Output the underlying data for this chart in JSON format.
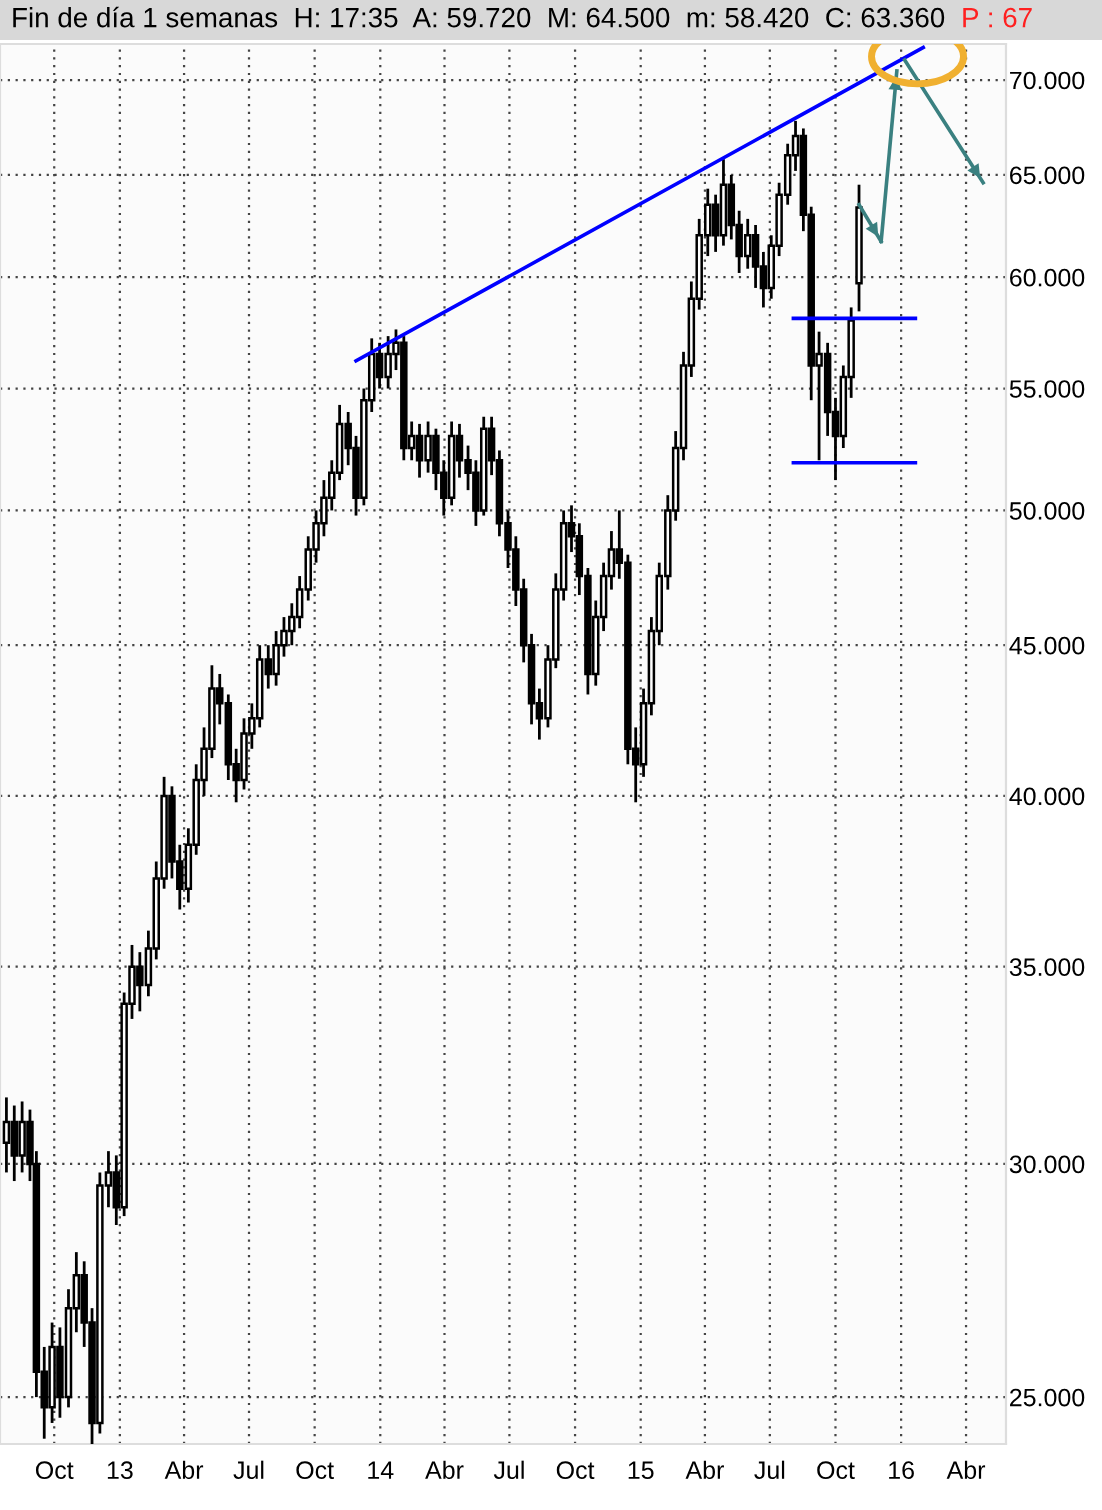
{
  "chart_data": {
    "type": "candlestick",
    "title": "Fin de día 1 semanas  H: 17:35  A: 59.720  M: 64.500  m: 58.420  C: 63.360",
    "annotations": [
      "P : 67"
    ],
    "log": "y",
    "grid": true,
    "xlim": [
      "2012-07-17",
      "2016-05-27"
    ],
    "ylim": [
      24.1,
      72
    ],
    "xticks": [
      {
        "value": "2012-10-01",
        "label": "Oct"
      },
      {
        "value": "2013-01-01",
        "label": "13"
      },
      {
        "value": "2013-04-01",
        "label": "Abr"
      },
      {
        "value": "2013-07-01",
        "label": "Jul"
      },
      {
        "value": "2013-10-01",
        "label": "Oct"
      },
      {
        "value": "2014-01-01",
        "label": "14"
      },
      {
        "value": "2014-04-01",
        "label": "Abr"
      },
      {
        "value": "2014-07-01",
        "label": "Jul"
      },
      {
        "value": "2014-10-01",
        "label": "Oct"
      },
      {
        "value": "2015-01-01",
        "label": "15"
      },
      {
        "value": "2015-04-01",
        "label": "Abr"
      },
      {
        "value": "2015-07-01",
        "label": "Jul"
      },
      {
        "value": "2015-10-01",
        "label": "Oct"
      },
      {
        "value": "2016-01-01",
        "label": "16"
      },
      {
        "value": "2016-04-01",
        "label": "Abr"
      }
    ],
    "yticks": [
      {
        "value": 25,
        "label": "25.000"
      },
      {
        "value": 30,
        "label": "30.000"
      },
      {
        "value": 35,
        "label": "35.000"
      },
      {
        "value": 40,
        "label": "40.000"
      },
      {
        "value": 45,
        "label": "45.000"
      },
      {
        "value": 50,
        "label": "50.000"
      },
      {
        "value": 55,
        "label": "55.000"
      },
      {
        "value": 60,
        "label": "60.000"
      },
      {
        "value": 65,
        "label": "65.000"
      },
      {
        "value": 70,
        "label": "70.000"
      }
    ],
    "x": [
      "2012-07-26",
      "2012-08-06",
      "2012-08-17",
      "2012-08-28",
      "2012-09-06",
      "2012-09-17",
      "2012-09-28",
      "2012-10-09",
      "2012-10-21",
      "2012-11-01",
      "2012-11-12",
      "2012-11-23",
      "2012-12-04",
      "2012-12-16",
      "2012-12-27",
      "2013-01-07",
      "2013-01-18",
      "2013-01-29",
      "2013-02-10",
      "2013-02-21",
      "2013-03-04",
      "2013-03-15",
      "2013-03-26",
      "2013-04-07",
      "2013-04-18",
      "2013-04-29",
      "2013-05-10",
      "2013-05-21",
      "2013-06-02",
      "2013-06-13",
      "2013-06-24",
      "2013-07-05",
      "2013-07-16",
      "2013-07-28",
      "2013-08-08",
      "2013-08-19",
      "2013-08-30",
      "2013-09-10",
      "2013-09-22",
      "2013-10-03",
      "2013-10-14",
      "2013-10-25",
      "2013-11-05",
      "2013-11-17",
      "2013-11-28",
      "2013-12-09",
      "2013-12-20",
      "2013-12-31",
      "2014-01-12",
      "2014-01-23",
      "2014-02-03",
      "2014-02-14",
      "2014-02-25",
      "2014-03-09",
      "2014-03-20",
      "2014-03-31",
      "2014-04-11",
      "2014-04-22",
      "2014-05-04",
      "2014-05-15",
      "2014-05-26",
      "2014-06-06",
      "2014-06-17",
      "2014-06-29",
      "2014-07-10",
      "2014-07-21",
      "2014-08-01",
      "2014-08-12",
      "2014-08-24",
      "2014-09-04",
      "2014-09-15",
      "2014-09-26",
      "2014-10-07",
      "2014-10-19",
      "2014-10-30",
      "2014-11-10",
      "2014-11-21",
      "2014-12-02",
      "2014-12-14",
      "2014-12-25",
      "2015-01-05",
      "2015-01-16",
      "2015-01-27",
      "2015-02-08",
      "2015-02-19",
      "2015-03-02",
      "2015-03-13",
      "2015-03-24",
      "2015-04-05",
      "2015-04-16",
      "2015-04-27",
      "2015-05-08",
      "2015-05-19",
      "2015-05-31",
      "2015-06-11",
      "2015-06-22",
      "2015-07-03",
      "2015-07-14",
      "2015-07-26",
      "2015-08-06",
      "2015-08-17",
      "2015-08-28",
      "2015-09-08",
      "2015-09-20",
      "2015-10-01",
      "2015-10-12",
      "2015-10-23",
      "2015-11-03"
    ],
    "ohlc": [
      [
        30.5,
        31.6,
        29.8,
        31.0
      ],
      [
        31.0,
        31.4,
        29.6,
        30.2
      ],
      [
        30.2,
        31.5,
        29.8,
        31.0
      ],
      [
        31.0,
        31.3,
        29.6,
        30.0
      ],
      [
        30.0,
        30.3,
        25.0,
        25.5
      ],
      [
        25.5,
        26.0,
        24.2,
        24.8
      ],
      [
        24.8,
        26.5,
        24.5,
        26.0
      ],
      [
        26.0,
        26.4,
        24.6,
        25.0
      ],
      [
        25.0,
        27.2,
        24.8,
        26.8
      ],
      [
        26.8,
        28.0,
        26.3,
        27.5
      ],
      [
        27.5,
        27.8,
        26.0,
        26.5
      ],
      [
        26.5,
        26.8,
        24.0,
        24.5
      ],
      [
        24.5,
        29.8,
        24.3,
        29.5
      ],
      [
        29.5,
        30.3,
        29.0,
        29.8
      ],
      [
        29.8,
        30.2,
        28.6,
        29.0
      ],
      [
        29.0,
        34.3,
        28.8,
        34.0
      ],
      [
        34.0,
        35.6,
        33.6,
        35.0
      ],
      [
        35.0,
        35.4,
        33.8,
        34.5
      ],
      [
        34.5,
        36.0,
        34.2,
        35.5
      ],
      [
        35.5,
        38.0,
        35.2,
        37.5
      ],
      [
        37.5,
        40.6,
        37.2,
        40.0
      ],
      [
        40.0,
        40.3,
        37.5,
        38.0
      ],
      [
        38.0,
        38.5,
        36.6,
        37.2
      ],
      [
        37.2,
        39.0,
        36.8,
        38.5
      ],
      [
        38.5,
        41.0,
        38.2,
        40.5
      ],
      [
        40.5,
        42.2,
        40.0,
        41.5
      ],
      [
        41.5,
        44.3,
        41.2,
        43.5
      ],
      [
        43.5,
        44.0,
        42.3,
        43.0
      ],
      [
        43.0,
        43.3,
        40.5,
        41.0
      ],
      [
        41.0,
        41.5,
        39.8,
        40.5
      ],
      [
        40.5,
        42.5,
        40.2,
        42.0
      ],
      [
        42.0,
        43.0,
        41.5,
        42.5
      ],
      [
        42.5,
        45.0,
        42.2,
        44.5
      ],
      [
        44.5,
        45.0,
        43.5,
        44.0
      ],
      [
        44.0,
        45.5,
        43.6,
        45.0
      ],
      [
        45.0,
        46.0,
        44.6,
        45.5
      ],
      [
        45.5,
        46.5,
        45.0,
        46.0
      ],
      [
        46.0,
        47.5,
        45.6,
        47.0
      ],
      [
        47.0,
        49.0,
        46.6,
        48.5
      ],
      [
        48.5,
        50.0,
        48.0,
        49.5
      ],
      [
        49.5,
        51.2,
        49.0,
        50.5
      ],
      [
        50.5,
        52.0,
        50.0,
        51.5
      ],
      [
        51.5,
        54.3,
        51.2,
        53.5
      ],
      [
        53.5,
        54.0,
        51.8,
        52.5
      ],
      [
        52.5,
        53.0,
        49.8,
        50.5
      ],
      [
        50.5,
        55.0,
        50.2,
        54.5
      ],
      [
        54.5,
        57.2,
        54.0,
        56.5
      ],
      [
        56.5,
        57.0,
        55.0,
        55.5
      ],
      [
        55.5,
        57.3,
        55.0,
        56.5
      ],
      [
        56.5,
        57.6,
        55.8,
        57.0
      ],
      [
        57.0,
        57.3,
        52.0,
        52.5
      ],
      [
        52.5,
        53.6,
        52.0,
        53.0
      ],
      [
        53.0,
        53.5,
        51.3,
        52.0
      ],
      [
        52.0,
        53.6,
        51.5,
        53.0
      ],
      [
        53.0,
        53.3,
        50.8,
        51.5
      ],
      [
        51.5,
        52.0,
        49.8,
        50.5
      ],
      [
        50.5,
        53.6,
        50.2,
        53.0
      ],
      [
        53.0,
        53.5,
        51.3,
        52.0
      ],
      [
        52.0,
        52.6,
        50.8,
        51.5
      ],
      [
        51.5,
        52.0,
        49.4,
        50.0
      ],
      [
        50.0,
        53.8,
        49.8,
        53.3
      ],
      [
        53.3,
        53.8,
        51.4,
        52.0
      ],
      [
        52.0,
        52.4,
        49.0,
        49.5
      ],
      [
        49.5,
        50.0,
        47.8,
        48.5
      ],
      [
        48.5,
        49.0,
        46.4,
        47.0
      ],
      [
        47.0,
        47.4,
        44.4,
        45.0
      ],
      [
        45.0,
        45.4,
        42.3,
        43.0
      ],
      [
        43.0,
        43.5,
        41.8,
        42.5
      ],
      [
        42.5,
        45.0,
        42.2,
        44.5
      ],
      [
        44.5,
        47.6,
        44.2,
        47.0
      ],
      [
        47.0,
        50.0,
        46.6,
        49.5
      ],
      [
        49.5,
        50.2,
        48.4,
        49.0
      ],
      [
        49.0,
        49.5,
        46.8,
        47.5
      ],
      [
        47.5,
        47.8,
        43.3,
        44.0
      ],
      [
        44.0,
        46.6,
        43.6,
        46.0
      ],
      [
        46.0,
        48.0,
        45.5,
        47.5
      ],
      [
        47.5,
        49.2,
        47.0,
        48.5
      ],
      [
        48.5,
        50.0,
        47.4,
        48.0
      ],
      [
        48.0,
        48.3,
        41.0,
        41.5
      ],
      [
        41.5,
        42.2,
        39.8,
        41.0
      ],
      [
        41.0,
        43.5,
        40.6,
        43.0
      ],
      [
        43.0,
        46.0,
        42.6,
        45.5
      ],
      [
        45.5,
        48.0,
        45.0,
        47.5
      ],
      [
        47.5,
        50.6,
        47.0,
        50.0
      ],
      [
        50.0,
        53.2,
        49.6,
        52.5
      ],
      [
        52.5,
        56.6,
        52.0,
        56.0
      ],
      [
        56.0,
        59.8,
        55.5,
        59.0
      ],
      [
        59.0,
        62.8,
        58.5,
        62.0
      ],
      [
        62.0,
        64.3,
        61.0,
        63.5
      ],
      [
        63.5,
        64.0,
        61.2,
        62.0
      ],
      [
        62.0,
        65.8,
        61.5,
        64.5
      ],
      [
        64.5,
        65.0,
        61.8,
        62.5
      ],
      [
        62.5,
        63.2,
        60.2,
        61.0
      ],
      [
        61.0,
        62.8,
        60.4,
        62.0
      ],
      [
        62.0,
        62.5,
        59.5,
        60.5
      ],
      [
        60.5,
        61.2,
        58.6,
        59.5
      ],
      [
        59.5,
        62.0,
        59.0,
        61.5
      ],
      [
        61.5,
        64.6,
        61.0,
        64.0
      ],
      [
        64.0,
        66.6,
        63.5,
        66.0
      ],
      [
        66.0,
        67.8,
        65.2,
        67.0
      ],
      [
        67.0,
        67.4,
        62.2,
        63.0
      ],
      [
        63.0,
        63.4,
        54.5,
        56.0
      ],
      [
        56.0,
        57.5,
        52.0,
        56.5
      ],
      [
        56.5,
        57.0,
        53.0,
        54.0
      ],
      [
        54.0,
        54.6,
        51.2,
        53.0
      ],
      [
        53.0,
        56.0,
        52.5,
        55.5
      ],
      [
        55.5,
        58.6,
        54.6,
        58.0
      ],
      [
        59.72,
        64.5,
        58.42,
        63.36
      ]
    ],
    "series": [
      {
        "type": "line",
        "color": "#0000ff",
        "x": [
          "2013-11-28",
          "2016-02-01"
        ],
        "values": [
          56.2,
          71.8
        ]
      },
      {
        "type": "line",
        "color": "#0000ff",
        "x": [
          "2015-08-03",
          "2016-01-21"
        ],
        "values": [
          58.1,
          58.1
        ]
      },
      {
        "type": "line",
        "color": "#0000ff",
        "x": [
          "2015-08-03",
          "2016-01-21"
        ],
        "values": [
          51.9,
          51.9
        ]
      },
      {
        "type": "line",
        "color": "#3a8080",
        "x": [
          "2015-11-03",
          "2015-12-04"
        ],
        "values": [
          63.5,
          61.7
        ]
      },
      {
        "type": "line",
        "color": "#3a8080",
        "x": [
          "2015-12-04",
          "2015-12-26"
        ],
        "values": [
          61.7,
          70.5
        ]
      },
      {
        "type": "line",
        "color": "#3a8080",
        "x": [
          "2016-01-06",
          "2016-04-25"
        ],
        "values": [
          71.1,
          64.6
        ]
      }
    ]
  }
}
